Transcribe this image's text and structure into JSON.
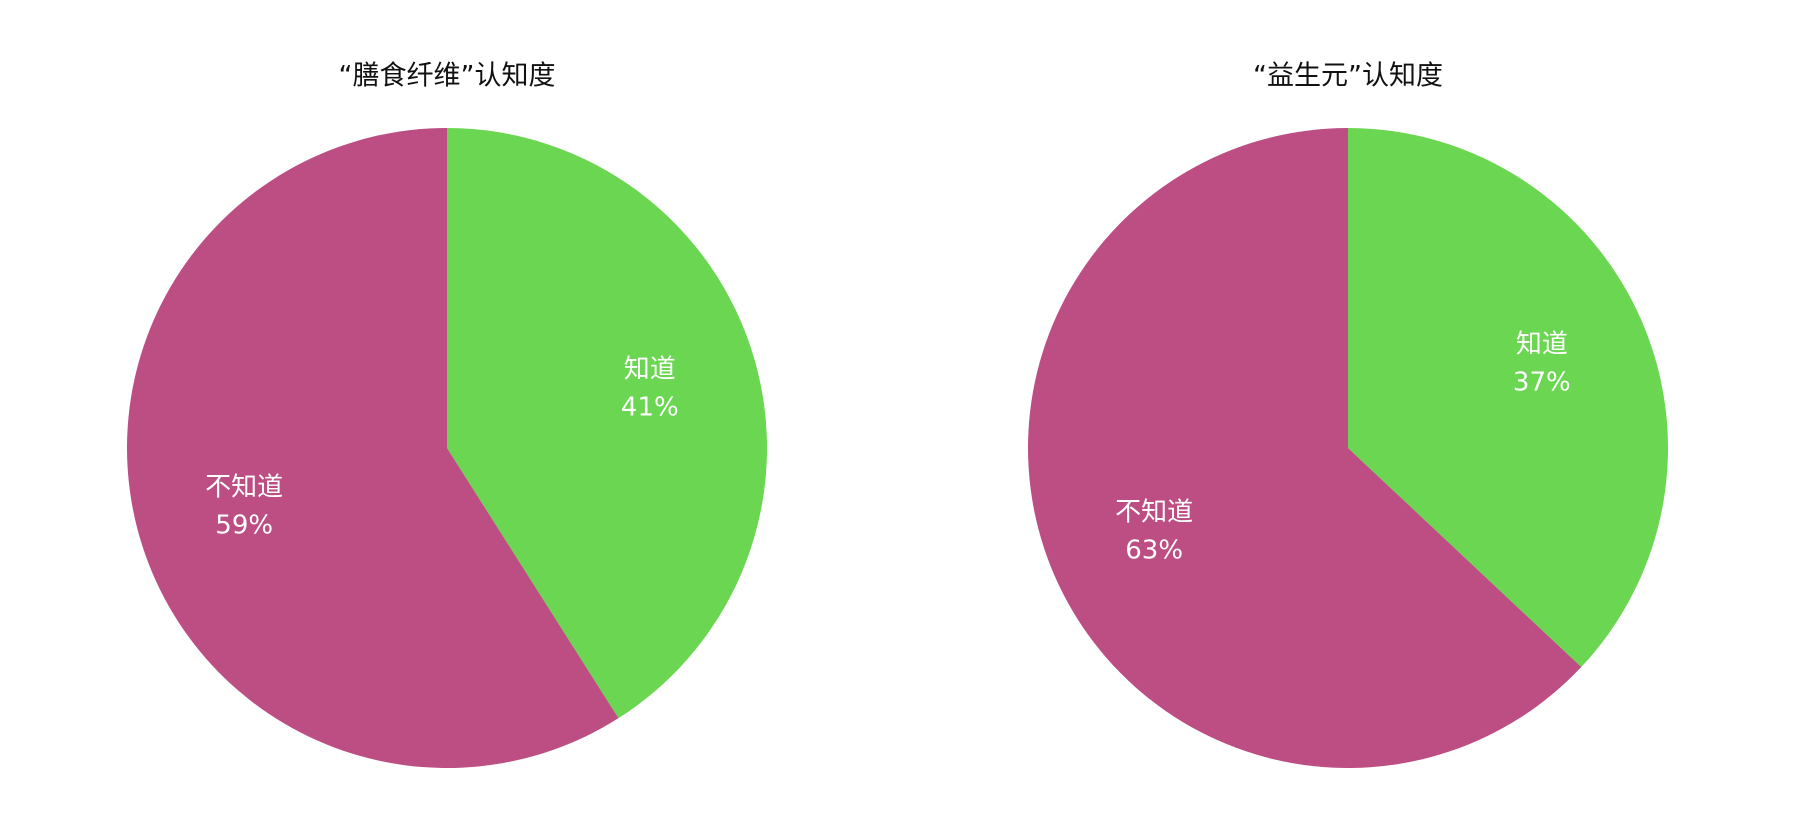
{
  "chart_data": [
    {
      "type": "pie",
      "title": "“膳食纤维”认知度",
      "categories": [
        "知道",
        "不知道"
      ],
      "values": [
        41,
        59
      ],
      "value_labels": [
        "41%",
        "59%"
      ],
      "colors": [
        "#6bd651",
        "#bd4e84"
      ]
    },
    {
      "type": "pie",
      "title": "“益生元”认知度",
      "categories": [
        "知道",
        "不知道"
      ],
      "values": [
        37,
        63
      ],
      "value_labels": [
        "37%",
        "63%"
      ],
      "colors": [
        "#6bd651",
        "#bd4e84"
      ]
    }
  ]
}
